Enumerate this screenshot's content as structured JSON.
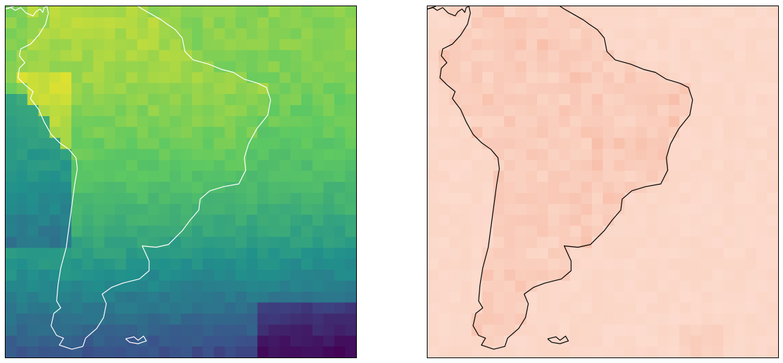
{
  "maps": [
    {
      "id": "left",
      "colormap": "viridis",
      "coastline_color": "#ffffff",
      "grid": {
        "cols": 32,
        "rows": 32
      },
      "value_range": [
        0,
        1
      ]
    },
    {
      "id": "right",
      "colormap": "reds",
      "coastline_color": "#000000",
      "grid": {
        "cols": 32,
        "rows": 32
      },
      "value_range": [
        0,
        1
      ]
    }
  ],
  "colors": {
    "viridis": [
      "#440154",
      "#3b528b",
      "#21918c",
      "#5ec962",
      "#fde725"
    ],
    "reds": [
      "#fcdcd0",
      "#fbd6c6",
      "#f9c8b6",
      "#f7b59d",
      "#f3a384"
    ]
  }
}
